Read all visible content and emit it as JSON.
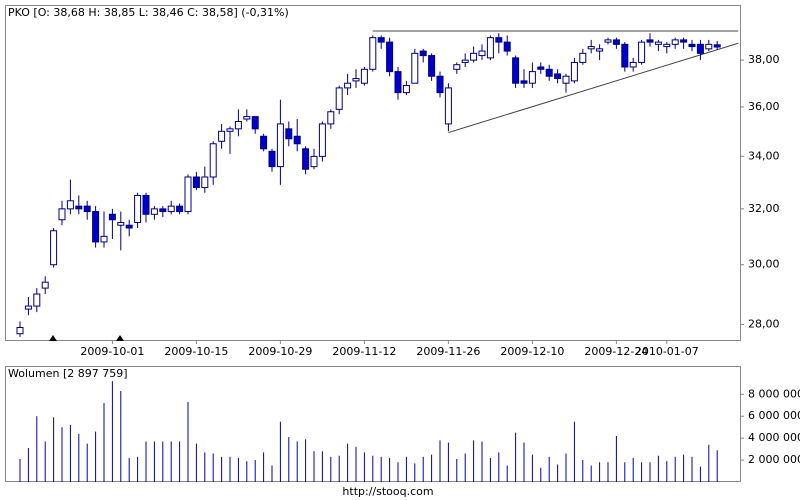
{
  "chart_data": [
    {
      "type": "candlestick",
      "title": "PKO [O: 38,68  H: 38,85  L: 38,46  C: 38,58] (-0,31%)",
      "categories": [
        null,
        null,
        null,
        null,
        null,
        null,
        null,
        null,
        null,
        null,
        null,
        "2009-10-01",
        null,
        null,
        null,
        null,
        null,
        null,
        null,
        null,
        null,
        "2009-10-15",
        null,
        null,
        null,
        null,
        null,
        null,
        null,
        null,
        null,
        "2009-10-29",
        null,
        null,
        null,
        null,
        null,
        null,
        null,
        null,
        null,
        "2009-11-12",
        null,
        null,
        null,
        null,
        null,
        null,
        null,
        null,
        null,
        "2009-11-26",
        null,
        null,
        null,
        null,
        null,
        null,
        null,
        null,
        null,
        "2009-12-10",
        null,
        null,
        null,
        null,
        null,
        null,
        null,
        null,
        null,
        "2009-12-24",
        null,
        null,
        null,
        null,
        null,
        "2010-01-07",
        null,
        null,
        null,
        null,
        null,
        null
      ],
      "open": [
        27.7,
        28.5,
        28.6,
        29.2,
        30.0,
        31.6,
        32.0,
        32.1,
        32.1,
        31.9,
        30.8,
        31.8,
        31.4,
        31.4,
        31.5,
        32.5,
        31.8,
        32.0,
        31.9,
        32.1,
        31.9,
        33.2,
        32.8,
        33.2,
        34.6,
        35.0,
        35.1,
        35.5,
        35.6,
        34.8,
        34.2,
        33.6,
        35.1,
        34.8,
        34.3,
        33.6,
        34.0,
        35.3,
        35.9,
        36.8,
        37.1,
        37.0,
        37.6,
        39.0,
        38.8,
        37.5,
        36.6,
        37.0,
        38.4,
        38.2,
        37.3,
        35.3,
        37.6,
        37.9,
        38.0,
        38.2,
        38.1,
        39.0,
        38.8,
        38.1,
        37.1,
        37.0,
        37.7,
        37.6,
        37.4,
        37.0,
        37.1,
        37.9,
        38.5,
        38.4,
        38.8,
        38.9,
        38.7,
        37.7,
        37.9,
        38.9,
        38.7,
        38.6,
        38.7,
        38.9,
        38.7,
        38.7,
        38.5,
        38.68
      ],
      "high": [
        28.1,
        28.9,
        29.2,
        29.6,
        31.3,
        32.3,
        33.1,
        32.5,
        32.3,
        32.1,
        31.9,
        32.0,
        31.9,
        31.6,
        32.6,
        32.6,
        32.1,
        32.1,
        32.3,
        32.2,
        33.3,
        33.4,
        33.6,
        34.6,
        35.3,
        35.2,
        35.9,
        35.9,
        35.6,
        34.9,
        34.3,
        36.3,
        35.4,
        35.5,
        34.4,
        34.3,
        35.4,
        35.9,
        36.9,
        37.4,
        37.6,
        37.7,
        39.1,
        39.1,
        39.0,
        37.7,
        37.1,
        38.5,
        38.5,
        38.3,
        37.5,
        37.0,
        37.9,
        38.3,
        38.6,
        38.7,
        39.1,
        39.2,
        39.1,
        38.2,
        37.6,
        37.9,
        37.9,
        37.8,
        37.6,
        37.4,
        38.1,
        38.5,
        38.9,
        38.7,
        39.0,
        39.0,
        38.8,
        38.1,
        38.9,
        39.2,
        38.9,
        38.8,
        39.0,
        39.0,
        38.9,
        38.9,
        38.9,
        38.85
      ],
      "low": [
        27.6,
        28.3,
        28.4,
        29.0,
        29.9,
        31.4,
        31.8,
        31.8,
        31.6,
        30.6,
        30.6,
        30.9,
        30.5,
        31.0,
        31.3,
        31.5,
        31.6,
        31.7,
        31.8,
        31.8,
        31.8,
        32.7,
        32.6,
        32.9,
        34.3,
        34.1,
        34.8,
        35.4,
        34.9,
        34.2,
        33.4,
        32.9,
        34.4,
        34.2,
        33.3,
        33.5,
        33.8,
        35.1,
        35.7,
        36.5,
        36.8,
        36.9,
        37.5,
        38.5,
        37.3,
        36.3,
        36.5,
        37.0,
        37.9,
        37.1,
        36.4,
        35.0,
        37.4,
        37.7,
        37.9,
        38.0,
        38.0,
        38.3,
        38.2,
        36.8,
        36.8,
        36.8,
        37.4,
        37.1,
        37.0,
        36.6,
        37.0,
        37.8,
        38.3,
        38.0,
        38.7,
        38.5,
        37.5,
        37.5,
        37.8,
        38.6,
        38.4,
        38.3,
        38.5,
        38.5,
        38.4,
        38.0,
        38.4,
        38.46
      ],
      "close": [
        27.9,
        28.6,
        29.0,
        29.4,
        31.2,
        32.0,
        32.3,
        32.0,
        31.9,
        30.8,
        31.0,
        31.6,
        31.5,
        31.3,
        32.5,
        31.8,
        32.0,
        31.9,
        32.1,
        31.9,
        33.2,
        32.8,
        33.2,
        34.5,
        35.0,
        35.1,
        35.4,
        35.6,
        35.1,
        34.3,
        33.6,
        35.3,
        34.7,
        34.5,
        33.5,
        34.0,
        35.3,
        35.8,
        36.8,
        37.0,
        37.2,
        37.6,
        39.0,
        38.8,
        37.5,
        36.6,
        36.9,
        38.3,
        38.2,
        37.3,
        36.6,
        36.8,
        37.8,
        38.0,
        38.3,
        38.4,
        39.0,
        38.8,
        38.4,
        37.0,
        37.0,
        37.5,
        37.6,
        37.3,
        37.2,
        37.3,
        37.9,
        38.3,
        38.6,
        38.5,
        38.9,
        38.7,
        37.7,
        37.9,
        38.8,
        38.8,
        38.8,
        38.7,
        38.9,
        38.8,
        38.6,
        38.3,
        38.7,
        38.58
      ],
      "ylim": [
        27.5,
        40.5
      ],
      "log_scale": true,
      "yticks": [
        {
          "value": 28,
          "label": "28,00"
        },
        {
          "value": 30,
          "label": "30,00"
        },
        {
          "value": 32,
          "label": "32,00"
        },
        {
          "value": 34,
          "label": "34,00"
        },
        {
          "value": 36,
          "label": "36,00"
        },
        {
          "value": 38,
          "label": "38,00"
        }
      ],
      "color_up": "#ffffff",
      "color_down": "#0000cc",
      "color_edge": "#000080",
      "trendlines": [
        {
          "x": [
            42,
            85.5
          ],
          "y": [
            39.3,
            39.3
          ]
        },
        {
          "x": [
            51,
            85.5
          ],
          "y": [
            34.95,
            38.75
          ]
        }
      ]
    },
    {
      "type": "bar",
      "title": "Wolumen [2 897 759]",
      "values": [
        2100000,
        3100000,
        6000000,
        3700000,
        5900000,
        5000000,
        5200000,
        4400000,
        3500000,
        4600000,
        7200000,
        9200000,
        8300000,
        2200000,
        2300000,
        3700000,
        3700000,
        3700000,
        3700000,
        3700000,
        7300000,
        3500000,
        2700000,
        2600000,
        2300000,
        2300000,
        2200000,
        1900000,
        2000000,
        2700000,
        1500000,
        5500000,
        4100000,
        3700000,
        3900000,
        2800000,
        2800000,
        2300000,
        2400000,
        3500000,
        3200000,
        2700000,
        2400000,
        2300000,
        2200000,
        1800000,
        2300000,
        1700000,
        2300000,
        2500000,
        3800000,
        3600000,
        2100000,
        2600000,
        3800000,
        3700000,
        2200000,
        2700000,
        1500000,
        4500000,
        3600000,
        2500000,
        1300000,
        2300000,
        1600000,
        2600000,
        5500000,
        2000000,
        1500000,
        1800000,
        1800000,
        4200000,
        1800000,
        2200000,
        1800000,
        1800000,
        2400000,
        1900000,
        2300000,
        2500000,
        2300000,
        1400000,
        3400000,
        2897759
      ],
      "color": "#0000aa",
      "ylim": [
        0,
        10400000
      ],
      "yticks": [
        {
          "value": 2000000,
          "label": "2 000 000"
        },
        {
          "value": 4000000,
          "label": "4 000 000"
        },
        {
          "value": 6000000,
          "label": "6 000 000"
        },
        {
          "value": 8000000,
          "label": "8 000 000"
        }
      ]
    }
  ],
  "footer": "http://stooq.com"
}
